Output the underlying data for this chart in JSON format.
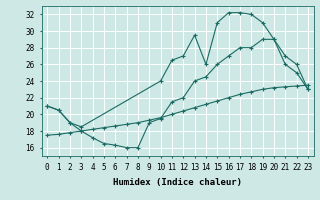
{
  "xlabel": "Humidex (Indice chaleur)",
  "bg_color": "#cde8e5",
  "grid_color": "#ffffff",
  "line_color": "#1a6b63",
  "xlim": [
    -0.5,
    23.5
  ],
  "ylim": [
    15.0,
    33.0
  ],
  "xticks": [
    0,
    1,
    2,
    3,
    4,
    5,
    6,
    7,
    8,
    9,
    10,
    11,
    12,
    13,
    14,
    15,
    16,
    17,
    18,
    19,
    20,
    21,
    22,
    23
  ],
  "yticks": [
    16,
    18,
    20,
    22,
    24,
    26,
    28,
    30,
    32
  ],
  "line1_x": [
    0,
    1,
    2,
    3,
    10,
    11,
    12,
    13,
    14,
    15,
    16,
    17,
    18,
    19,
    20,
    21,
    22,
    23
  ],
  "line1_y": [
    21.0,
    20.5,
    19.0,
    18.5,
    24.0,
    26.5,
    27.0,
    29.5,
    26.0,
    31.0,
    32.2,
    32.2,
    32.0,
    31.0,
    29.0,
    26.0,
    25.0,
    23.0
  ],
  "line2_x": [
    0,
    1,
    2,
    3,
    4,
    5,
    6,
    7,
    8,
    9,
    10,
    11,
    12,
    13,
    14,
    15,
    16,
    17,
    18,
    19,
    20,
    21,
    22,
    23
  ],
  "line2_y": [
    21.0,
    20.5,
    19.0,
    18.0,
    17.2,
    16.5,
    16.3,
    16.0,
    16.0,
    19.0,
    19.5,
    21.5,
    22.0,
    24.0,
    24.5,
    26.0,
    27.0,
    28.0,
    28.0,
    29.0,
    29.0,
    27.0,
    26.0,
    23.0
  ],
  "line3_x": [
    0,
    1,
    2,
    3,
    4,
    5,
    6,
    7,
    8,
    9,
    10,
    11,
    12,
    13,
    14,
    15,
    16,
    17,
    18,
    19,
    20,
    21,
    22,
    23
  ],
  "line3_y": [
    17.5,
    17.6,
    17.8,
    18.0,
    18.2,
    18.4,
    18.6,
    18.8,
    19.0,
    19.3,
    19.6,
    20.0,
    20.4,
    20.8,
    21.2,
    21.6,
    22.0,
    22.4,
    22.7,
    23.0,
    23.2,
    23.3,
    23.4,
    23.5
  ],
  "marker": "+",
  "markersize": 3,
  "linewidth": 0.8,
  "tick_fontsize": 5.5,
  "xlabel_fontsize": 6.5
}
